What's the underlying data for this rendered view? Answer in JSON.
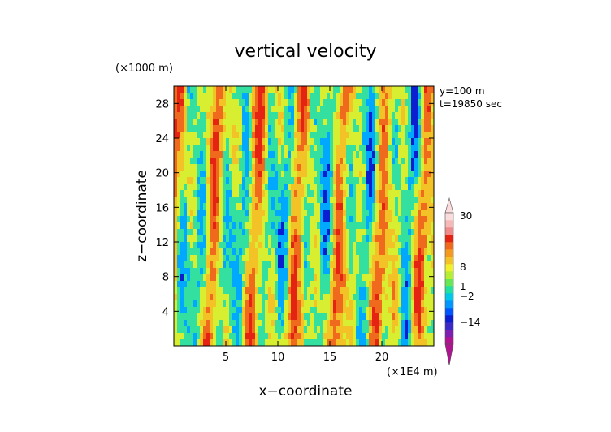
{
  "chart_data": {
    "type": "heatmap",
    "title": "vertical velocity",
    "xlabel": "x−coordinate",
    "ylabel": "z−coordinate",
    "x_unit": "(×1E4 m)",
    "y_unit": "(×1000 m)",
    "annotations": [
      "y=100 m",
      "t=19850 sec"
    ],
    "xlim": [
      0,
      25
    ],
    "ylim": [
      0,
      30
    ],
    "x_ticks": [
      5,
      10,
      15,
      20
    ],
    "y_ticks": [
      4,
      8,
      12,
      16,
      20,
      24,
      28
    ],
    "field_note": "Field consists of predominantly vertical streaks of negative (blue) and positive (orange/red) velocity, mixed with near-zero (green/yellow) values.",
    "colorbar": {
      "tick_labels": [
        "30",
        "8",
        "1",
        "−2",
        "−14"
      ],
      "tick_values": [
        30,
        8,
        1,
        -2,
        -14
      ],
      "bands": [
        {
          "color": "#b0138f"
        },
        {
          "color": "#7d1fb1"
        },
        {
          "color": "#3a2bc8"
        },
        {
          "color": "#0b1fd0"
        },
        {
          "color": "#0055ff"
        },
        {
          "color": "#0097ff"
        },
        {
          "color": "#00c8e8"
        },
        {
          "color": "#22e0a0"
        },
        {
          "color": "#66e855"
        },
        {
          "color": "#b6ee33"
        },
        {
          "color": "#f2f02a"
        },
        {
          "color": "#f3c227"
        },
        {
          "color": "#f39a1f"
        },
        {
          "color": "#f06a1d"
        },
        {
          "color": "#e52313"
        },
        {
          "color": "#f18a8a"
        },
        {
          "color": "#f7b8b8"
        },
        {
          "color": "#fbdcdc"
        }
      ]
    },
    "colors": {
      "strong_negative": "#0b1fd0",
      "negative": "#00a8ff",
      "near_zero_low": "#34e0a0",
      "near_zero_high": "#d8ee30",
      "positive": "#f3c227",
      "strong_positive": "#f06a1d",
      "peak": "#e52313"
    }
  }
}
